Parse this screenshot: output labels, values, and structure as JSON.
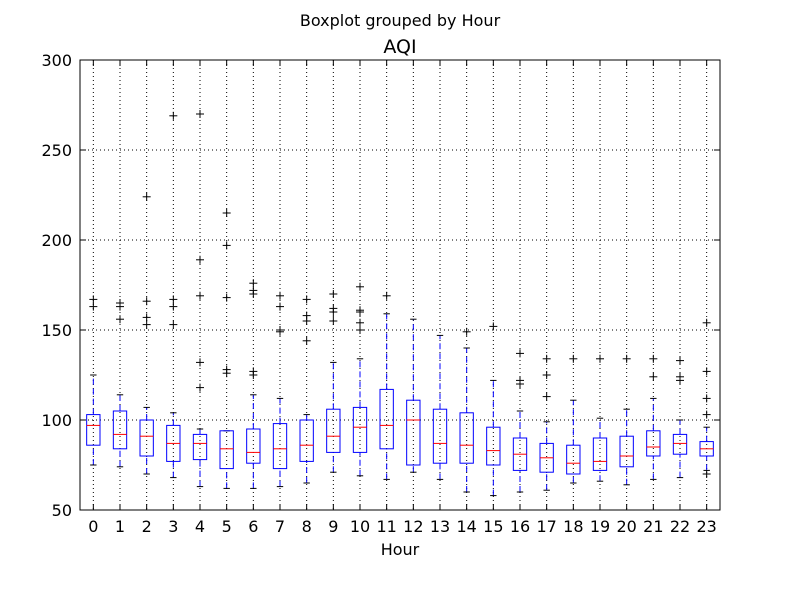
{
  "chart_data": {
    "type": "boxplot",
    "suptitle": "Boxplot grouped by Hour",
    "title": "AQI",
    "xlabel": "Hour",
    "ylabel": "",
    "ylim": [
      50,
      300
    ],
    "yticks": [
      50,
      100,
      150,
      200,
      250,
      300
    ],
    "grid": true,
    "colors": {
      "box": "#0000ff",
      "median": "#ff0000",
      "flier": "#000000",
      "grid": "#000000"
    },
    "categories": [
      "0",
      "1",
      "2",
      "3",
      "4",
      "5",
      "6",
      "7",
      "8",
      "9",
      "10",
      "11",
      "12",
      "13",
      "14",
      "15",
      "16",
      "17",
      "18",
      "19",
      "20",
      "21",
      "22",
      "23"
    ],
    "boxes": [
      {
        "whislo": 75,
        "q1": 86,
        "med": 97,
        "q3": 103,
        "whishi": 125,
        "fliers": [
          163,
          167
        ]
      },
      {
        "whislo": 74,
        "q1": 84,
        "med": 92,
        "q3": 105,
        "whishi": 114,
        "fliers": [
          156,
          163,
          165
        ]
      },
      {
        "whislo": 70,
        "q1": 80,
        "med": 91,
        "q3": 100,
        "whishi": 107,
        "fliers": [
          153,
          157,
          166,
          224
        ]
      },
      {
        "whislo": 68,
        "q1": 77,
        "med": 87,
        "q3": 97,
        "whishi": 104,
        "fliers": [
          153,
          163,
          167,
          269
        ]
      },
      {
        "whislo": 63,
        "q1": 78,
        "med": 87,
        "q3": 92,
        "whishi": 95,
        "fliers": [
          118,
          132,
          169,
          189,
          270
        ]
      },
      {
        "whislo": 62,
        "q1": 73,
        "med": 84,
        "q3": 94,
        "whishi": 94,
        "fliers": [
          126,
          128,
          168,
          197,
          215
        ]
      },
      {
        "whislo": 62,
        "q1": 76,
        "med": 82,
        "q3": 95,
        "whishi": 114,
        "fliers": [
          125,
          127,
          170,
          172,
          176
        ]
      },
      {
        "whislo": 63,
        "q1": 73,
        "med": 84,
        "q3": 98,
        "whishi": 112,
        "fliers": [
          149,
          150,
          163,
          169
        ]
      },
      {
        "whislo": 65,
        "q1": 77,
        "med": 86,
        "q3": 100,
        "whishi": 103,
        "fliers": [
          144,
          155,
          158,
          167
        ]
      },
      {
        "whislo": 71,
        "q1": 82,
        "med": 91,
        "q3": 106,
        "whishi": 132,
        "fliers": [
          155,
          160,
          162,
          170
        ]
      },
      {
        "whislo": 69,
        "q1": 82,
        "med": 96,
        "q3": 107,
        "whishi": 134,
        "fliers": [
          150,
          154,
          160,
          161,
          174
        ]
      },
      {
        "whislo": 67,
        "q1": 84,
        "med": 97,
        "q3": 117,
        "whishi": 159,
        "fliers": [
          169
        ]
      },
      {
        "whislo": 71,
        "q1": 75,
        "med": 100,
        "q3": 111,
        "whishi": 156,
        "fliers": []
      },
      {
        "whislo": 67,
        "q1": 76,
        "med": 87,
        "q3": 106,
        "whishi": 147,
        "fliers": []
      },
      {
        "whislo": 60,
        "q1": 76,
        "med": 86,
        "q3": 104,
        "whishi": 140,
        "fliers": [
          149
        ]
      },
      {
        "whislo": 58,
        "q1": 75,
        "med": 83,
        "q3": 96,
        "whishi": 122,
        "fliers": [
          152
        ]
      },
      {
        "whislo": 60,
        "q1": 72,
        "med": 81,
        "q3": 90,
        "whishi": 105,
        "fliers": [
          120,
          122,
          137
        ]
      },
      {
        "whislo": 61,
        "q1": 71,
        "med": 79,
        "q3": 87,
        "whishi": 99,
        "fliers": [
          113,
          125,
          134
        ]
      },
      {
        "whislo": 65,
        "q1": 70,
        "med": 76,
        "q3": 86,
        "whishi": 111,
        "fliers": [
          134
        ]
      },
      {
        "whislo": 66,
        "q1": 72,
        "med": 77,
        "q3": 90,
        "whishi": 101,
        "fliers": [
          134
        ]
      },
      {
        "whislo": 64,
        "q1": 74,
        "med": 80,
        "q3": 91,
        "whishi": 106,
        "fliers": [
          134
        ]
      },
      {
        "whislo": 67,
        "q1": 80,
        "med": 85,
        "q3": 94,
        "whishi": 112,
        "fliers": [
          124,
          134
        ]
      },
      {
        "whislo": 68,
        "q1": 81,
        "med": 87,
        "q3": 92,
        "whishi": 100,
        "fliers": [
          122,
          124,
          133
        ]
      },
      {
        "whislo": 72,
        "q1": 80,
        "med": 84,
        "q3": 88,
        "whishi": 96,
        "fliers": [
          70,
          103,
          112,
          127,
          154
        ]
      }
    ]
  }
}
